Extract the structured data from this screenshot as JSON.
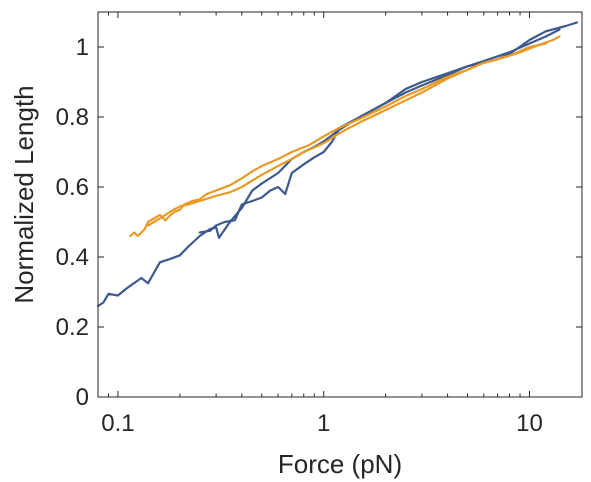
{
  "chart_data": {
    "type": "line",
    "title": "",
    "xlabel": "Force (pN)",
    "ylabel": "Normalized Length",
    "xscale": "log",
    "xlim": [
      0.08,
      18
    ],
    "ylim": [
      0,
      1.1
    ],
    "xticks": [
      {
        "value": 0.1,
        "label": "0.1"
      },
      {
        "value": 1,
        "label": "1"
      },
      {
        "value": 10,
        "label": "10"
      }
    ],
    "yticks": [
      {
        "value": 0,
        "label": "0"
      },
      {
        "value": 0.2,
        "label": "0.2"
      },
      {
        "value": 0.4,
        "label": "0.4"
      },
      {
        "value": 0.6,
        "label": "0.6"
      },
      {
        "value": 0.8,
        "label": "0.8"
      },
      {
        "value": 1,
        "label": "1"
      }
    ],
    "grid": false,
    "legend": "none",
    "series": [
      {
        "color": "#3d5a8e",
        "points": [
          [
            0.08,
            0.26
          ],
          [
            0.085,
            0.27
          ],
          [
            0.09,
            0.295
          ],
          [
            0.1,
            0.29
          ],
          [
            0.11,
            0.31
          ],
          [
            0.13,
            0.34
          ],
          [
            0.14,
            0.325
          ],
          [
            0.16,
            0.385
          ],
          [
            0.18,
            0.395
          ],
          [
            0.2,
            0.405
          ],
          [
            0.22,
            0.43
          ],
          [
            0.25,
            0.46
          ],
          [
            0.28,
            0.48
          ],
          [
            0.3,
            0.485
          ],
          [
            0.31,
            0.455
          ],
          [
            0.35,
            0.5
          ],
          [
            0.4,
            0.54
          ],
          [
            0.45,
            0.59
          ],
          [
            0.5,
            0.61
          ],
          [
            0.6,
            0.64
          ],
          [
            0.7,
            0.68
          ],
          [
            0.8,
            0.7
          ],
          [
            0.9,
            0.715
          ],
          [
            1,
            0.73
          ],
          [
            1.2,
            0.765
          ],
          [
            1.5,
            0.8
          ],
          [
            2,
            0.84
          ],
          [
            2.5,
            0.87
          ],
          [
            3,
            0.89
          ],
          [
            4,
            0.92
          ],
          [
            5,
            0.945
          ],
          [
            6,
            0.955
          ],
          [
            7,
            0.965
          ],
          [
            8,
            0.98
          ],
          [
            10,
            1.02
          ],
          [
            12,
            1.045
          ],
          [
            15,
            1.06
          ],
          [
            17,
            1.07
          ]
        ]
      },
      {
        "color": "#3d5a8e",
        "points": [
          [
            0.25,
            0.47
          ],
          [
            0.28,
            0.475
          ],
          [
            0.3,
            0.49
          ],
          [
            0.33,
            0.5
          ],
          [
            0.37,
            0.505
          ],
          [
            0.4,
            0.55
          ],
          [
            0.45,
            0.56
          ],
          [
            0.5,
            0.57
          ],
          [
            0.55,
            0.59
          ],
          [
            0.6,
            0.6
          ],
          [
            0.65,
            0.58
          ],
          [
            0.7,
            0.64
          ],
          [
            0.8,
            0.665
          ],
          [
            0.9,
            0.685
          ],
          [
            1,
            0.7
          ],
          [
            1.1,
            0.73
          ],
          [
            1.2,
            0.77
          ],
          [
            1.5,
            0.8
          ],
          [
            2,
            0.84
          ],
          [
            2.5,
            0.88
          ],
          [
            3,
            0.9
          ],
          [
            4,
            0.925
          ],
          [
            5,
            0.945
          ],
          [
            6,
            0.96
          ],
          [
            8,
            0.985
          ],
          [
            10,
            1.01
          ],
          [
            12,
            1.03
          ],
          [
            14,
            1.05
          ]
        ]
      },
      {
        "color": "#e89a27",
        "points": [
          [
            0.115,
            0.46
          ],
          [
            0.12,
            0.47
          ],
          [
            0.125,
            0.46
          ],
          [
            0.135,
            0.48
          ],
          [
            0.14,
            0.5
          ],
          [
            0.16,
            0.52
          ],
          [
            0.17,
            0.505
          ],
          [
            0.18,
            0.52
          ],
          [
            0.19,
            0.53
          ],
          [
            0.2,
            0.535
          ],
          [
            0.21,
            0.55
          ],
          [
            0.23,
            0.56
          ],
          [
            0.25,
            0.565
          ],
          [
            0.27,
            0.58
          ],
          [
            0.3,
            0.59
          ],
          [
            0.35,
            0.605
          ],
          [
            0.4,
            0.625
          ],
          [
            0.45,
            0.645
          ],
          [
            0.5,
            0.66
          ],
          [
            0.6,
            0.68
          ],
          [
            0.7,
            0.7
          ],
          [
            0.85,
            0.72
          ],
          [
            1,
            0.745
          ],
          [
            1.2,
            0.77
          ],
          [
            1.5,
            0.795
          ],
          [
            2,
            0.83
          ],
          [
            2.5,
            0.86
          ],
          [
            3,
            0.88
          ],
          [
            4,
            0.915
          ],
          [
            5,
            0.935
          ],
          [
            6,
            0.955
          ],
          [
            7,
            0.965
          ],
          [
            9,
            0.985
          ],
          [
            11,
            1.005
          ],
          [
            13,
            1.02
          ],
          [
            14,
            1.03
          ]
        ]
      },
      {
        "color": "#e89a27",
        "points": [
          [
            0.14,
            0.49
          ],
          [
            0.16,
            0.51
          ],
          [
            0.18,
            0.53
          ],
          [
            0.2,
            0.545
          ],
          [
            0.22,
            0.55
          ],
          [
            0.25,
            0.56
          ],
          [
            0.3,
            0.575
          ],
          [
            0.35,
            0.585
          ],
          [
            0.4,
            0.6
          ],
          [
            0.5,
            0.635
          ],
          [
            0.6,
            0.66
          ],
          [
            0.7,
            0.68
          ],
          [
            0.8,
            0.7
          ],
          [
            1,
            0.725
          ],
          [
            1.2,
            0.755
          ],
          [
            1.5,
            0.785
          ],
          [
            2,
            0.82
          ],
          [
            3,
            0.87
          ],
          [
            4,
            0.91
          ],
          [
            5,
            0.935
          ],
          [
            6,
            0.955
          ],
          [
            8,
            0.975
          ],
          [
            10,
            1.0
          ],
          [
            12,
            1.01
          ]
        ]
      }
    ]
  }
}
